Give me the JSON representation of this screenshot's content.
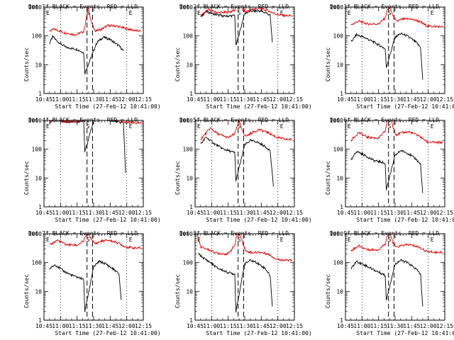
{
  "chart_data": {
    "type": "line",
    "ylabel": "Counts/sec",
    "xlabel": "Start Time (27-Feb-12 10:41:00)",
    "y_scale": "log",
    "ylim": [
      1,
      1000
    ],
    "y_ticks": [
      1,
      10,
      100,
      1000
    ],
    "xlim_minutes_after_1045": [
      0,
      90
    ],
    "x_ticks": [
      "10:45",
      "11:00",
      "11:15",
      "11:30",
      "11:45",
      "12:00",
      "12:15"
    ],
    "event_markers": {
      "dotted_minutes": [
        15,
        75
      ],
      "dashed_minutes": [
        39,
        44
      ],
      "labels": [
        "E",
        "S",
        "E"
      ]
    },
    "panels": [
      {
        "title": "Det 1f BLACK = Events, RED = LLD",
        "red": [
          [
            5,
            150
          ],
          [
            10,
            170
          ],
          [
            18,
            130
          ],
          [
            28,
            110
          ],
          [
            36,
            140
          ],
          [
            38,
            330
          ],
          [
            40,
            1000
          ],
          [
            43,
            300
          ],
          [
            46,
            150
          ],
          [
            52,
            170
          ],
          [
            58,
            230
          ],
          [
            66,
            220
          ],
          [
            74,
            180
          ],
          [
            82,
            155
          ],
          [
            88,
            145
          ]
        ],
        "black": [
          [
            5,
            55
          ],
          [
            8,
            95
          ],
          [
            12,
            65
          ],
          [
            20,
            40
          ],
          [
            30,
            34
          ],
          [
            36,
            26
          ],
          [
            37,
            5
          ],
          [
            45,
            30
          ],
          [
            48,
            60
          ],
          [
            54,
            90
          ],
          [
            60,
            75
          ],
          [
            68,
            45
          ],
          [
            72,
            30
          ]
        ]
      },
      {
        "title": "Det 2f BLACK = Events, RED = LLD",
        "red": [
          [
            5,
            500
          ],
          [
            12,
            800
          ],
          [
            20,
            640
          ],
          [
            30,
            660
          ],
          [
            36,
            780
          ],
          [
            38,
            1300
          ],
          [
            40,
            2000
          ],
          [
            43,
            800
          ],
          [
            46,
            700
          ],
          [
            52,
            850
          ],
          [
            58,
            900
          ],
          [
            66,
            750
          ],
          [
            74,
            560
          ],
          [
            82,
            500
          ],
          [
            88,
            500
          ]
        ],
        "black": [
          [
            5,
            450
          ],
          [
            10,
            700
          ],
          [
            18,
            560
          ],
          [
            26,
            480
          ],
          [
            34,
            500
          ],
          [
            36,
            520
          ],
          [
            37,
            45
          ],
          [
            45,
            600
          ],
          [
            50,
            720
          ],
          [
            58,
            740
          ],
          [
            64,
            640
          ],
          [
            68,
            520
          ],
          [
            70,
            60
          ]
        ]
      },
      {
        "title": "Det 3f BLACK = Events, RED = LLD",
        "red": [
          [
            5,
            240
          ],
          [
            12,
            330
          ],
          [
            20,
            260
          ],
          [
            30,
            260
          ],
          [
            36,
            420
          ],
          [
            38,
            800
          ],
          [
            40,
            1100
          ],
          [
            43,
            500
          ],
          [
            46,
            320
          ],
          [
            52,
            380
          ],
          [
            58,
            390
          ],
          [
            66,
            330
          ],
          [
            74,
            220
          ],
          [
            82,
            210
          ],
          [
            88,
            210
          ]
        ],
        "black": [
          [
            5,
            60
          ],
          [
            10,
            110
          ],
          [
            18,
            85
          ],
          [
            26,
            60
          ],
          [
            34,
            40
          ],
          [
            36,
            35
          ],
          [
            37,
            8
          ],
          [
            45,
            90
          ],
          [
            50,
            120
          ],
          [
            56,
            100
          ],
          [
            64,
            60
          ],
          [
            68,
            40
          ],
          [
            70,
            3
          ]
        ]
      },
      {
        "title": "Det 4f BLACK = Events, RED = LLD",
        "red": [
          [
            5,
            800
          ],
          [
            10,
            1500
          ],
          [
            14,
            1000
          ],
          [
            20,
            900
          ],
          [
            30,
            950
          ],
          [
            36,
            1100
          ],
          [
            38,
            2000
          ],
          [
            40,
            2200
          ],
          [
            43,
            1200
          ],
          [
            46,
            1100
          ],
          [
            52,
            1300
          ],
          [
            58,
            1200
          ],
          [
            66,
            1000
          ],
          [
            74,
            850
          ],
          [
            82,
            800
          ],
          [
            88,
            800
          ]
        ],
        "black": [
          [
            5,
            750
          ],
          [
            10,
            1300
          ],
          [
            14,
            950
          ],
          [
            20,
            850
          ],
          [
            30,
            900
          ],
          [
            36,
            1000
          ],
          [
            37,
            80
          ],
          [
            45,
            1000
          ],
          [
            50,
            1200
          ],
          [
            58,
            1150
          ],
          [
            66,
            900
          ],
          [
            72,
            800
          ],
          [
            74,
            15
          ]
        ]
      },
      {
        "title": "Det 5f BLACK = Events, RED = LLD",
        "red": [
          [
            5,
            220
          ],
          [
            14,
            550
          ],
          [
            20,
            350
          ],
          [
            30,
            250
          ],
          [
            36,
            340
          ],
          [
            38,
            650
          ],
          [
            40,
            900
          ],
          [
            43,
            420
          ],
          [
            46,
            280
          ],
          [
            52,
            380
          ],
          [
            58,
            480
          ],
          [
            66,
            380
          ],
          [
            74,
            260
          ],
          [
            82,
            220
          ],
          [
            88,
            220
          ]
        ],
        "black": [
          [
            5,
            150
          ],
          [
            10,
            260
          ],
          [
            18,
            150
          ],
          [
            26,
            100
          ],
          [
            34,
            80
          ],
          [
            36,
            75
          ],
          [
            37,
            8
          ],
          [
            45,
            140
          ],
          [
            50,
            200
          ],
          [
            56,
            180
          ],
          [
            64,
            120
          ],
          [
            68,
            90
          ],
          [
            71,
            5
          ]
        ]
      },
      {
        "title": "Det 6f BLACK = Events, RED = LLD",
        "red": [
          [
            5,
            200
          ],
          [
            12,
            380
          ],
          [
            20,
            260
          ],
          [
            30,
            240
          ],
          [
            36,
            420
          ],
          [
            38,
            1000
          ],
          [
            40,
            1800
          ],
          [
            43,
            600
          ],
          [
            46,
            320
          ],
          [
            52,
            380
          ],
          [
            58,
            400
          ],
          [
            66,
            300
          ],
          [
            74,
            180
          ],
          [
            82,
            170
          ],
          [
            88,
            170
          ]
        ],
        "black": [
          [
            5,
            40
          ],
          [
            10,
            85
          ],
          [
            18,
            60
          ],
          [
            26,
            40
          ],
          [
            34,
            35
          ],
          [
            36,
            30
          ],
          [
            37,
            4
          ],
          [
            45,
            60
          ],
          [
            50,
            90
          ],
          [
            56,
            75
          ],
          [
            64,
            45
          ],
          [
            68,
            30
          ],
          [
            70,
            3
          ]
        ]
      },
      {
        "title": "Det 7f BLACK = Events, RED = LLD",
        "red": [
          [
            5,
            400
          ],
          [
            12,
            600
          ],
          [
            20,
            420
          ],
          [
            30,
            400
          ],
          [
            36,
            550
          ],
          [
            38,
            900
          ],
          [
            40,
            1100
          ],
          [
            43,
            650
          ],
          [
            46,
            450
          ],
          [
            52,
            550
          ],
          [
            58,
            600
          ],
          [
            66,
            500
          ],
          [
            74,
            350
          ],
          [
            82,
            320
          ],
          [
            88,
            320
          ]
        ],
        "black": [
          [
            5,
            60
          ],
          [
            10,
            85
          ],
          [
            18,
            50
          ],
          [
            26,
            35
          ],
          [
            34,
            28
          ],
          [
            36,
            25
          ],
          [
            37,
            2
          ],
          [
            45,
            70
          ],
          [
            50,
            110
          ],
          [
            56,
            90
          ],
          [
            64,
            55
          ],
          [
            68,
            40
          ],
          [
            70,
            5
          ]
        ]
      },
      {
        "title": "Det 8f BLACK = Events, RED = LLD",
        "red": [
          [
            2,
            1000
          ],
          [
            5,
            350
          ],
          [
            10,
            300
          ],
          [
            20,
            210
          ],
          [
            30,
            200
          ],
          [
            36,
            400
          ],
          [
            38,
            1000
          ],
          [
            40,
            1100
          ],
          [
            43,
            500
          ],
          [
            46,
            250
          ],
          [
            52,
            220
          ],
          [
            58,
            230
          ],
          [
            66,
            200
          ],
          [
            74,
            130
          ],
          [
            82,
            120
          ],
          [
            88,
            120
          ]
        ],
        "black": [
          [
            3,
            200
          ],
          [
            8,
            140
          ],
          [
            14,
            100
          ],
          [
            20,
            65
          ],
          [
            30,
            45
          ],
          [
            36,
            40
          ],
          [
            37,
            2
          ],
          [
            45,
            90
          ],
          [
            50,
            120
          ],
          [
            56,
            100
          ],
          [
            64,
            60
          ],
          [
            68,
            35
          ],
          [
            70,
            3
          ]
        ]
      },
      {
        "title": "Det 9f BLACK = Events, RED = LLD",
        "red": [
          [
            5,
            260
          ],
          [
            12,
            380
          ],
          [
            20,
            280
          ],
          [
            30,
            280
          ],
          [
            36,
            450
          ],
          [
            38,
            900
          ],
          [
            40,
            1100
          ],
          [
            43,
            500
          ],
          [
            46,
            340
          ],
          [
            52,
            400
          ],
          [
            58,
            420
          ],
          [
            66,
            350
          ],
          [
            74,
            240
          ],
          [
            82,
            230
          ],
          [
            88,
            230
          ]
        ],
        "black": [
          [
            5,
            60
          ],
          [
            10,
            110
          ],
          [
            18,
            80
          ],
          [
            26,
            55
          ],
          [
            34,
            40
          ],
          [
            36,
            35
          ],
          [
            37,
            5
          ],
          [
            45,
            90
          ],
          [
            50,
            120
          ],
          [
            56,
            100
          ],
          [
            64,
            60
          ],
          [
            68,
            40
          ],
          [
            70,
            3
          ]
        ]
      }
    ]
  },
  "colors": {
    "red": "#dd0000",
    "black": "#000000"
  }
}
